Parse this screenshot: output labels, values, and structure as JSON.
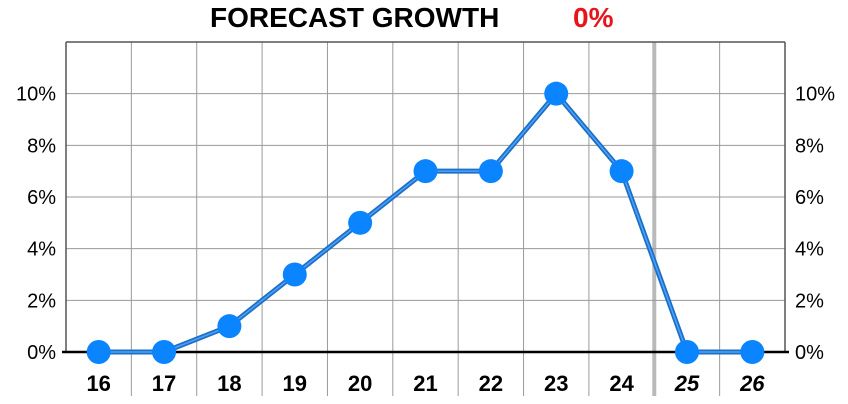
{
  "header": {
    "title": "FORECAST GROWTH",
    "value": "0%",
    "value_color": "#e8141b"
  },
  "chart_data": {
    "type": "line",
    "title": "FORECAST GROWTH",
    "categories": [
      "16",
      "17",
      "18",
      "19",
      "20",
      "21",
      "22",
      "23",
      "24",
      "25",
      "26"
    ],
    "forecast_categories": [
      "25",
      "26"
    ],
    "series": [
      {
        "values": [
          0,
          0,
          1,
          3,
          5,
          7,
          7,
          10,
          7,
          0,
          0
        ]
      }
    ],
    "ylim": [
      0,
      12
    ],
    "yticks": [
      0,
      2,
      4,
      6,
      8,
      10
    ],
    "ytick_labels": [
      "0%",
      "2%",
      "4%",
      "6%",
      "8%",
      "10%"
    ],
    "grid": true,
    "line_color": "#1e6fc4",
    "marker_color": "#0a84ff",
    "grid_color": "#9a9a9a"
  }
}
